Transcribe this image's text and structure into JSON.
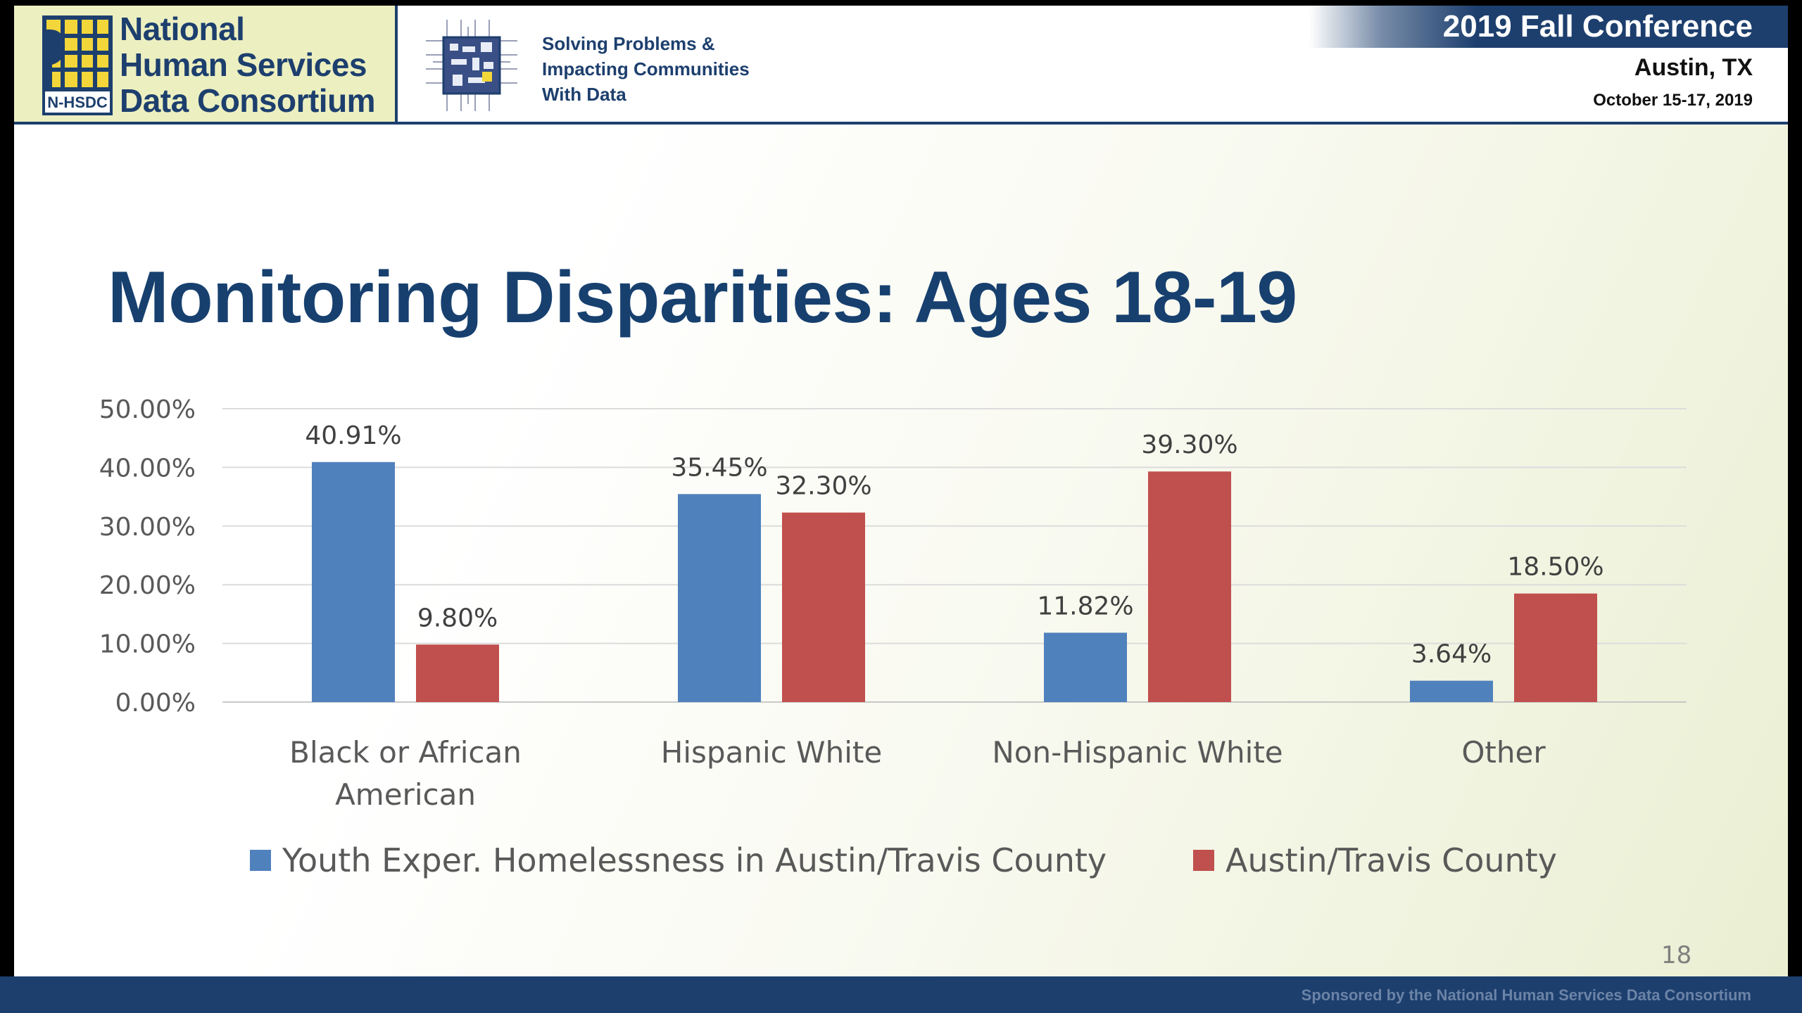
{
  "header": {
    "logo_lines": [
      "National",
      "Human Services",
      "Data Consortium"
    ],
    "logo_mark_text": "N-HSDC",
    "tagline_lines": [
      "Solving Problems &",
      "Impacting Communities",
      "With Data"
    ],
    "conference_title": "2019 Fall Conference",
    "conference_city": "Austin, TX",
    "conference_dates": "October 15-17, 2019"
  },
  "slide": {
    "title": "Monitoring Disparities: Ages 18-19",
    "page_number": "18"
  },
  "footer": {
    "sponsor_text": "Sponsored by the National Human Services Data Consortium"
  },
  "colors": {
    "series_1": "#4f81bd",
    "series_2": "#c0504d",
    "navy": "#1d3f6e"
  },
  "chart_data": {
    "type": "bar",
    "title": "",
    "xlabel": "",
    "ylabel": "",
    "ylim": [
      0,
      50
    ],
    "yticks": [
      "50.00%",
      "40.00%",
      "30.00%",
      "20.00%",
      "10.00%",
      "0.00%"
    ],
    "ytick_values": [
      50,
      40,
      30,
      20,
      10,
      0
    ],
    "grid": true,
    "legend_position": "bottom",
    "categories": [
      [
        "Black or African",
        "American"
      ],
      [
        "Hispanic White"
      ],
      [
        "Non-Hispanic White"
      ],
      [
        "Other"
      ]
    ],
    "series": [
      {
        "name": "Youth Exper. Homelessness in Austin/Travis County",
        "color": "#4f81bd",
        "values": [
          40.91,
          35.45,
          11.82,
          3.64
        ],
        "labels": [
          "40.91%",
          "35.45%",
          "11.82%",
          "3.64%"
        ]
      },
      {
        "name": "Austin/Travis County",
        "color": "#c0504d",
        "values": [
          9.8,
          32.3,
          39.3,
          18.5
        ],
        "labels": [
          "9.80%",
          "32.30%",
          "39.30%",
          "18.50%"
        ]
      }
    ]
  }
}
